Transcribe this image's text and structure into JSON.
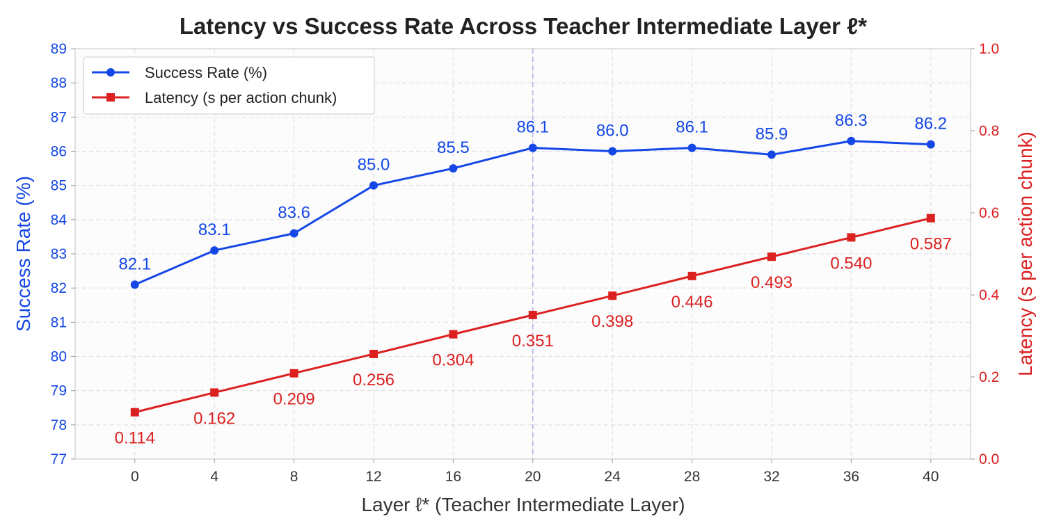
{
  "chart_data": {
    "type": "line",
    "title": "Latency vs Success Rate Across Teacher Intermediate Layer ℓ*",
    "xlabel": "Layer ℓ* (Teacher Intermediate Layer)",
    "ylabel_left": "Success Rate (%)",
    "ylabel_right": "Latency (s per action chunk)",
    "x": [
      0,
      4,
      8,
      12,
      16,
      20,
      24,
      28,
      32,
      36,
      40
    ],
    "x_ticks": [
      "0",
      "4",
      "8",
      "12",
      "16",
      "20",
      "24",
      "28",
      "32",
      "36",
      "40"
    ],
    "xlim": [
      -3,
      42
    ],
    "ylim_left": [
      77,
      89
    ],
    "ylim_right": [
      0.0,
      1.0
    ],
    "y_ticks_left": [
      "77",
      "78",
      "79",
      "80",
      "81",
      "82",
      "83",
      "84",
      "85",
      "86",
      "87",
      "88",
      "89"
    ],
    "y_ticks_right": [
      "0.0",
      "0.2",
      "0.4",
      "0.6",
      "0.8",
      "1.0"
    ],
    "highlight_x": 20,
    "grid": true,
    "legend_position": "top-left",
    "series": [
      {
        "name": "Success Rate (%)",
        "axis": "left",
        "marker": "circle",
        "color": "#1447e6",
        "values": [
          82.1,
          83.1,
          83.6,
          85.0,
          85.5,
          86.1,
          86.0,
          86.1,
          85.9,
          86.3,
          86.2
        ],
        "labels": [
          "82.1",
          "83.1",
          "83.6",
          "85.0",
          "85.5",
          "86.1",
          "86.0",
          "86.1",
          "85.9",
          "86.3",
          "86.2"
        ]
      },
      {
        "name": "Latency (s per action chunk)",
        "axis": "right",
        "marker": "square",
        "color": "#dc2020",
        "values": [
          0.114,
          0.162,
          0.209,
          0.256,
          0.304,
          0.351,
          0.398,
          0.446,
          0.493,
          0.54,
          0.587
        ],
        "labels": [
          "0.114",
          "0.162",
          "0.209",
          "0.256",
          "0.304",
          "0.351",
          "0.398",
          "0.446",
          "0.493",
          "0.540",
          "0.587"
        ]
      }
    ]
  }
}
